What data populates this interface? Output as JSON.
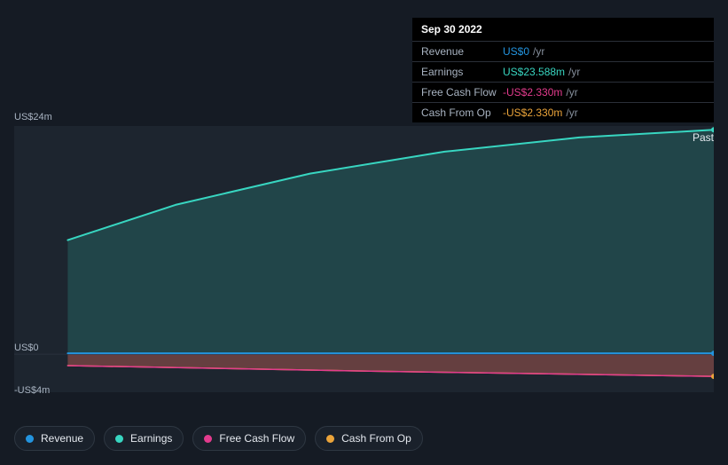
{
  "colors": {
    "background": "#151b24",
    "panel_border": "#2a313c",
    "panel_bg": "#1a212b",
    "plot_bg": "#1d252f",
    "text_muted": "#a8b3c1",
    "text_strong": "#ffffff",
    "series": {
      "revenue": "#2394df",
      "earnings": "#38d6c1",
      "fcf": "#e33b8d",
      "cfo": "#eba43a"
    }
  },
  "tooltip": {
    "date": "Sep 30 2022",
    "rows": [
      {
        "label": "Revenue",
        "value": "US$0",
        "unit": "/yr",
        "color": "#2394df"
      },
      {
        "label": "Earnings",
        "value": "US$23.588m",
        "unit": "/yr",
        "color": "#38d6c1"
      },
      {
        "label": "Free Cash Flow",
        "value": "-US$2.330m",
        "unit": "/yr",
        "color": "#e33b8d"
      },
      {
        "label": "Cash From Op",
        "value": "-US$2.330m",
        "unit": "/yr",
        "color": "#eba43a"
      }
    ]
  },
  "chart": {
    "type": "area",
    "past_label": "Past",
    "ylim_million": [
      -4,
      24
    ],
    "y_ticks": [
      {
        "v": 24,
        "label": "US$24m"
      },
      {
        "v": 0,
        "label": "US$0"
      },
      {
        "v": -4,
        "label": "-US$4m"
      }
    ],
    "x_domain": [
      0,
      100
    ],
    "zero_line_color": "#2a313c",
    "plot_fill": "#1d252f",
    "series": {
      "earnings": {
        "color": "#38d6c1",
        "fill_opacity": 0.18,
        "stroke_width": 2,
        "points": [
          {
            "x": 4,
            "y": 12.0
          },
          {
            "x": 20,
            "y": 15.7
          },
          {
            "x": 40,
            "y": 19.0
          },
          {
            "x": 60,
            "y": 21.3
          },
          {
            "x": 80,
            "y": 22.8
          },
          {
            "x": 100,
            "y": 23.6
          }
        ]
      },
      "revenue": {
        "color": "#2394df",
        "fill_opacity": 0.2,
        "stroke_width": 2,
        "points": [
          {
            "x": 4,
            "y": 0.1
          },
          {
            "x": 100,
            "y": 0.1
          }
        ]
      },
      "fcf": {
        "color": "#e33b8d",
        "fill_opacity": 0.22,
        "stroke_width": 1.5,
        "points": [
          {
            "x": 4,
            "y": -1.2
          },
          {
            "x": 50,
            "y": -1.8
          },
          {
            "x": 100,
            "y": -2.33
          }
        ]
      },
      "cfo": {
        "color": "#eba43a",
        "fill_opacity": 0.18,
        "stroke_width": 1.5,
        "points": [
          {
            "x": 4,
            "y": -1.2
          },
          {
            "x": 50,
            "y": -1.8
          },
          {
            "x": 100,
            "y": -2.33
          }
        ]
      }
    },
    "end_dot_radius": 3
  },
  "legend": [
    {
      "label": "Revenue",
      "color": "#2394df"
    },
    {
      "label": "Earnings",
      "color": "#38d6c1"
    },
    {
      "label": "Free Cash Flow",
      "color": "#e33b8d"
    },
    {
      "label": "Cash From Op",
      "color": "#eba43a"
    }
  ]
}
